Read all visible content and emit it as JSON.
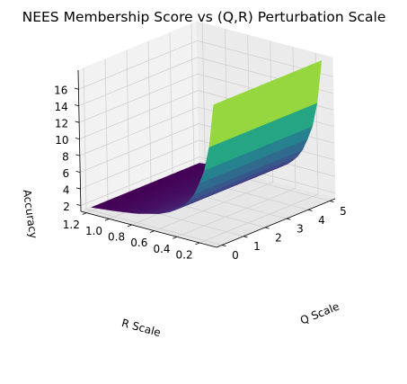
{
  "chart_data": {
    "type": "surface",
    "title": "NEES Membership Score vs (Q,R) Perturbation Scale",
    "xlabel": "R Scale",
    "ylabel": "Q Scale",
    "zlabel": "Accuracy",
    "xlim": [
      0.05,
      1.25
    ],
    "ylim": [
      -0.25,
      5.25
    ],
    "zlim": [
      1.3,
      18.3
    ],
    "x_ticks": [
      "0.2",
      "0.4",
      "0.6",
      "0.8",
      "1.0",
      "1.2"
    ],
    "y_ticks": [
      "0",
      "1",
      "2",
      "3",
      "4",
      "5"
    ],
    "z_ticks": [
      "2",
      "4",
      "6",
      "8",
      "10",
      "12",
      "14",
      "16"
    ],
    "colormap": "viridis",
    "grid": true,
    "r_range": [
      0.1,
      1.2
    ],
    "q_range": [
      0,
      5
    ],
    "surface": [
      {
        "r_scale": 0.1,
        "accuracy": 18.0
      },
      {
        "r_scale": 0.15,
        "accuracy": 12.3
      },
      {
        "r_scale": 0.2,
        "accuracy": 9.3
      },
      {
        "r_scale": 0.3,
        "accuracy": 6.1
      },
      {
        "r_scale": 0.4,
        "accuracy": 4.6
      },
      {
        "r_scale": 0.5,
        "accuracy": 3.7
      },
      {
        "r_scale": 0.6,
        "accuracy": 3.1
      },
      {
        "r_scale": 0.8,
        "accuracy": 2.4
      },
      {
        "r_scale": 1.0,
        "accuracy": 2.0
      },
      {
        "r_scale": 1.2,
        "accuracy": 1.7
      }
    ]
  }
}
